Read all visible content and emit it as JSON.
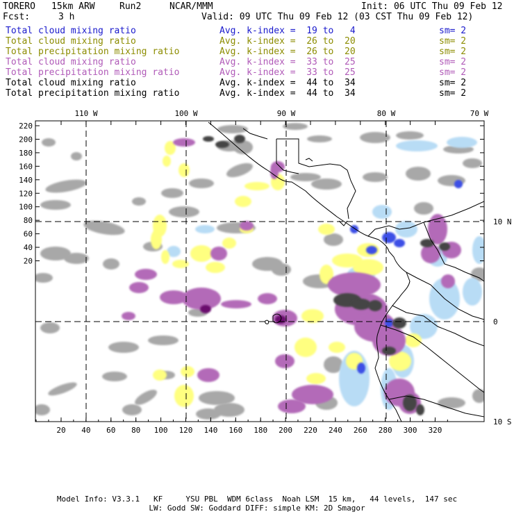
{
  "header": {
    "model": "TORERO",
    "resolution": "15km ARW",
    "run": "Run2",
    "center": "NCAR/MMM",
    "init": "Init: 06 UTC Thu 09 Feb 12",
    "fcst_label": "Fcst:",
    "fcst_value": "3 h",
    "valid": "Valid: 09 UTC Thu 09 Feb 12 (03 CST Thu 09 Feb 12)"
  },
  "legend_rows": [
    {
      "field": "Total cloud mixing ratio",
      "kindex": "Avg. k-index =  19 to   4",
      "sm": "sm= 2",
      "color": "#1a1acc"
    },
    {
      "field": "Total cloud mixing ratio",
      "kindex": "Avg. k-index =  26 to  20",
      "sm": "sm= 2",
      "color": "#8c8c00"
    },
    {
      "field": "Total precipitation mixing ratio",
      "kindex": "Avg. k-index =  26 to  20",
      "sm": "sm= 2",
      "color": "#8c8c00"
    },
    {
      "field": "Total cloud mixing ratio",
      "kindex": "Avg. k-index =  33 to  25",
      "sm": "sm= 2",
      "color": "#b05ab8"
    },
    {
      "field": "Total precipitation mixing ratio",
      "kindex": "Avg. k-index =  33 to  25",
      "sm": "sm= 2",
      "color": "#b05ab8"
    },
    {
      "field": "Total cloud mixing ratio",
      "kindex": "Avg. k-index =  44 to  34",
      "sm": "sm= 2",
      "color": "#000000"
    },
    {
      "field": "Total precipitation mixing ratio",
      "kindex": "Avg. k-index =  44 to  34",
      "sm": "sm= 2",
      "color": "#000000"
    }
  ],
  "map": {
    "lon_labels": [
      "110 W",
      "100 W",
      "90 W",
      "80 W",
      "70 W"
    ],
    "lat_labels": [
      "10 N",
      "0",
      "10 S"
    ],
    "y_ticks": [
      "220",
      "200",
      "180",
      "160",
      "140",
      "120",
      "100",
      "80",
      "60",
      "40",
      "20"
    ],
    "x_ticks": [
      "20",
      "40",
      "60",
      "80",
      "100",
      "120",
      "140",
      "160",
      "180",
      "200",
      "220",
      "240",
      "260",
      "280",
      "300",
      "320"
    ]
  },
  "footer": {
    "line1": "Model Info: V3.3.1   KF     YSU PBL  WDM 6class  Noah LSM  15 km,   44 levels,  147 sec",
    "line2": "LW: Godd SW: Goddard DIFF: simple KM: 2D Smagor"
  },
  "colors": {
    "gray": "#a8a8a8",
    "dark": "#444444",
    "yellow": "#ffff80",
    "purple": "#b36ab8",
    "deep_purple": "#6a0d6e",
    "lightblue": "#b8dcf5",
    "blue": "#3c50e6"
  }
}
